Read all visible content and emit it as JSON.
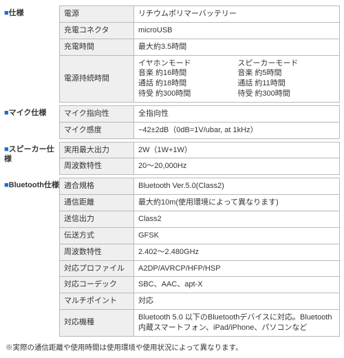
{
  "colors": {
    "square": "#1a6fd6",
    "border": "#b8b8b8",
    "keyBg": "#efefef",
    "text": "#333333"
  },
  "typography": {
    "baseFontSize": 11,
    "footnoteFontSize": 10.5
  },
  "sections": {
    "spec": {
      "title": "仕様",
      "rows": {
        "power": {
          "k": "電源",
          "v": "リチウムポリマーバッテリー"
        },
        "connector": {
          "k": "充電コネクタ",
          "v": "microUSB"
        },
        "chargeTime": {
          "k": "充電時間",
          "v": "最大約3.5時間"
        },
        "battery": {
          "k": "電源持続時間",
          "col1h": "イヤホンモード",
          "col2h": "スピーカーモード",
          "music1": "音楽 約16時間",
          "music2": "音楽 約5時間",
          "call1": "通話 約18時間",
          "call2": "通話 約11時間",
          "sby1": "待受 約300時間",
          "sby2": "待受 約300時間"
        }
      }
    },
    "mic": {
      "title": "マイク仕様",
      "rows": {
        "dir": {
          "k": "マイク指向性",
          "v": "全指向性"
        },
        "sens": {
          "k": "マイク感度",
          "v": "−42±2dB（0dB=1V/ubar, at 1kHz）"
        }
      }
    },
    "speaker": {
      "title": "スピーカー仕様",
      "rows": {
        "out": {
          "k": "実用最大出力",
          "v": "2W（1W+1W）"
        },
        "freq": {
          "k": "周波数特性",
          "v": "20〜20,000Hz"
        }
      }
    },
    "bt": {
      "title": "Bluetooth仕様",
      "rows": {
        "std": {
          "k": "適合規格",
          "v": "Bluetooth Ver.5.0(Class2)"
        },
        "range": {
          "k": "通信距離",
          "v": "最大約10m(使用環境によって異なります)"
        },
        "tx": {
          "k": "送信出力",
          "v": "Class2"
        },
        "method": {
          "k": "伝送方式",
          "v": "GFSK"
        },
        "freq": {
          "k": "周波数特性",
          "v": "2.402〜2.480GHz"
        },
        "profile": {
          "k": "対応プロファイル",
          "v": "A2DP/AVRCP/HFP/HSP"
        },
        "codec": {
          "k": "対応コーデック",
          "v": "SBC、AAC、apt-X"
        },
        "multi": {
          "k": "マルチポイント",
          "v": "対応"
        },
        "device": {
          "k": "対応機種",
          "v": "Bluetooth 5.0 以下のBluetoothデバイスに対応。Bluetooth内蔵スマートフォン、iPad/iPhone、パソコンなど"
        }
      }
    }
  },
  "footnote": "※実際の通信距離や使用時間は使用環境や使用状況によって異なります。"
}
